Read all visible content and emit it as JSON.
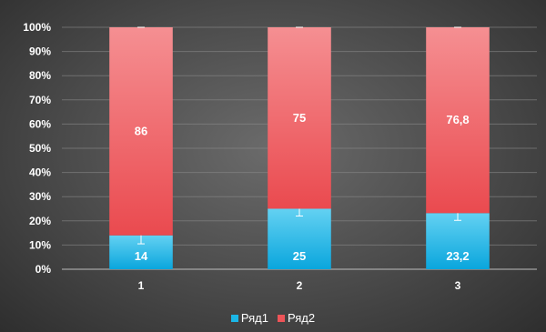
{
  "chart_data": {
    "type": "bar",
    "stacked": "percent",
    "categories": [
      "1",
      "2",
      "3"
    ],
    "series": [
      {
        "name": "Ряд1",
        "values": [
          14,
          25,
          23.2
        ],
        "labels": [
          "14",
          "25",
          "23,2"
        ],
        "error": [
          3.5,
          3.0,
          3.0
        ],
        "color": "#1bb6e6"
      },
      {
        "name": "Ряд2",
        "values": [
          86,
          75,
          76.8
        ],
        "labels": [
          "86",
          "75",
          "76,8"
        ],
        "error": [
          0,
          0,
          0
        ],
        "color": "#ee5458"
      }
    ],
    "yticks": [
      "0%",
      "10%",
      "20%",
      "30%",
      "40%",
      "50%",
      "60%",
      "70%",
      "80%",
      "90%",
      "100%"
    ],
    "ylim": [
      0,
      100
    ],
    "grid": true,
    "legend_position": "bottom"
  }
}
